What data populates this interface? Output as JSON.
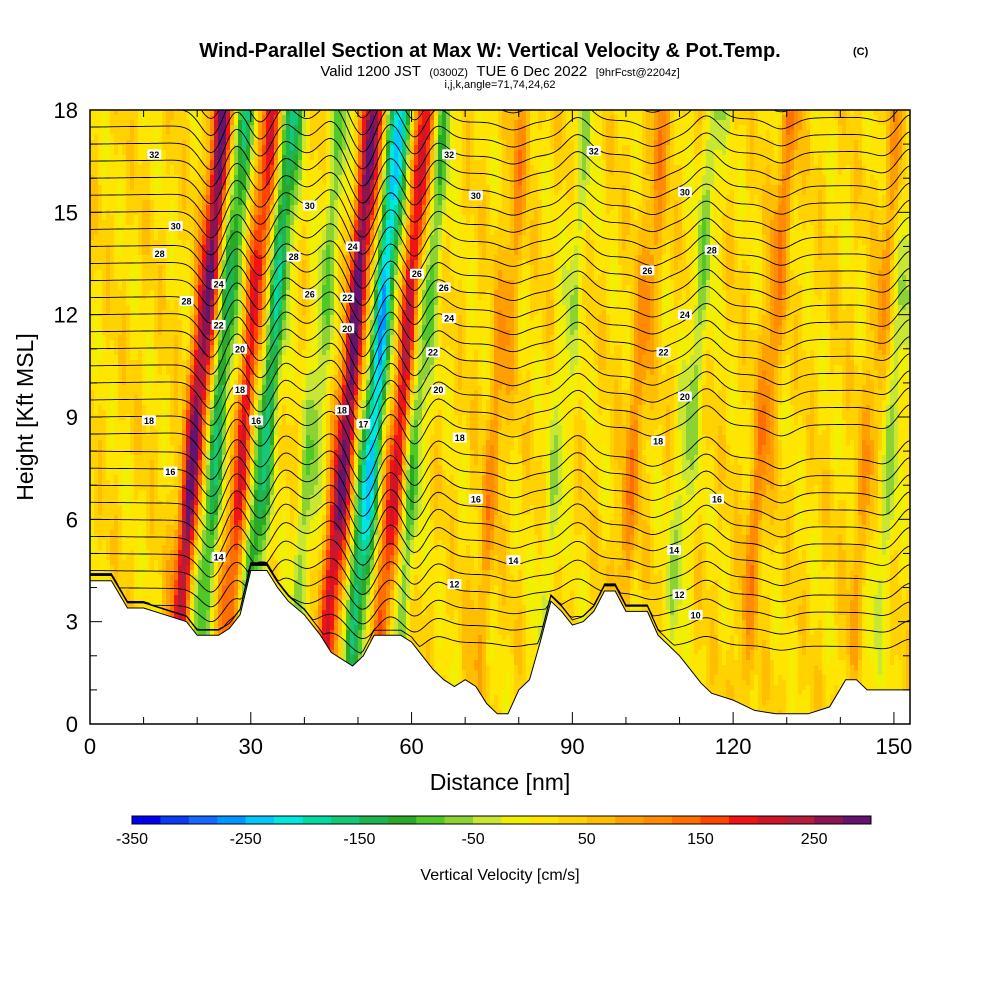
{
  "title": {
    "main": "Wind-Parallel Section at Max W: Vertical Velocity & Pot.Temp.",
    "main_tag": "(C)",
    "valid_prefix": "Valid 1200 JST",
    "valid_utc": "(0300Z)",
    "valid_date": "TUE 6 Dec 2022",
    "forecast": "[9hrFcst@2204z]",
    "indices": "i,j,k,angle=71,74,24,62"
  },
  "chart_data": {
    "type": "heatmap",
    "xlabel": "Distance [nm]",
    "ylabel": "Height [Kft MSL]",
    "xlim": [
      0,
      153
    ],
    "ylim": [
      0,
      18
    ],
    "x_ticks": [
      0,
      30,
      60,
      90,
      120,
      150
    ],
    "y_ticks": [
      0,
      3,
      6,
      9,
      12,
      15,
      18
    ],
    "colorbar": {
      "label": "Vertical Velocity [cm/s]",
      "range": [
        -350,
        300
      ],
      "tick_values": [
        -350,
        -250,
        -150,
        -50,
        50,
        150,
        250
      ],
      "tick_labels": [
        "-350",
        "-250",
        "-150",
        "-50",
        "50",
        "150",
        "250"
      ],
      "colors": [
        "#0000f0",
        "#0a3cf5",
        "#1468ff",
        "#0096ff",
        "#00c8ff",
        "#00e6e0",
        "#00dca0",
        "#14c878",
        "#1eb450",
        "#28aa28",
        "#50c828",
        "#8cd232",
        "#c8e632",
        "#f0f000",
        "#ffe600",
        "#ffd200",
        "#ffbe00",
        "#ffa000",
        "#ff8c00",
        "#ff6e00",
        "#ff4600",
        "#f01414",
        "#d21428",
        "#b41e3c",
        "#8c1450",
        "#64146e"
      ]
    },
    "terrain": [
      [
        0,
        4.2
      ],
      [
        4,
        4.2
      ],
      [
        7,
        3.4
      ],
      [
        10,
        3.4
      ],
      [
        14,
        3.2
      ],
      [
        18,
        3.0
      ],
      [
        20,
        2.6
      ],
      [
        22,
        2.6
      ],
      [
        24,
        2.6
      ],
      [
        26,
        2.8
      ],
      [
        28,
        3.2
      ],
      [
        30,
        4.5
      ],
      [
        33,
        4.5
      ],
      [
        35,
        4.0
      ],
      [
        37,
        3.6
      ],
      [
        40,
        3.2
      ],
      [
        43,
        2.6
      ],
      [
        45,
        2.1
      ],
      [
        47,
        1.9
      ],
      [
        49,
        1.7
      ],
      [
        51,
        2.0
      ],
      [
        53,
        2.6
      ],
      [
        56,
        2.6
      ],
      [
        58,
        2.6
      ],
      [
        60,
        2.4
      ],
      [
        62,
        2.0
      ],
      [
        64,
        1.6
      ],
      [
        66,
        1.3
      ],
      [
        68,
        1.1
      ],
      [
        70,
        1.3
      ],
      [
        72,
        1.1
      ],
      [
        74,
        0.6
      ],
      [
        76,
        0.3
      ],
      [
        78,
        0.3
      ],
      [
        80,
        1.0
      ],
      [
        82,
        1.3
      ],
      [
        84,
        2.4
      ],
      [
        86,
        3.6
      ],
      [
        88,
        3.3
      ],
      [
        90,
        2.9
      ],
      [
        92,
        3.0
      ],
      [
        94,
        3.3
      ],
      [
        96,
        3.9
      ],
      [
        98,
        3.9
      ],
      [
        100,
        3.3
      ],
      [
        102,
        3.3
      ],
      [
        104,
        3.3
      ],
      [
        106,
        2.6
      ],
      [
        108,
        2.3
      ],
      [
        110,
        2.0
      ],
      [
        112,
        1.6
      ],
      [
        114,
        1.2
      ],
      [
        116,
        0.9
      ],
      [
        118,
        0.8
      ],
      [
        120,
        0.7
      ],
      [
        124,
        0.4
      ],
      [
        128,
        0.3
      ],
      [
        134,
        0.3
      ],
      [
        138,
        0.5
      ],
      [
        141,
        1.3
      ],
      [
        143,
        1.3
      ],
      [
        145,
        1.0
      ],
      [
        153,
        1.0
      ]
    ],
    "updrafts": [
      {
        "x": 20,
        "vmax": 260
      },
      {
        "x": 29,
        "vmax": 170
      },
      {
        "x": 48,
        "vmax": 260
      },
      {
        "x": 58,
        "vmax": 200
      },
      {
        "x": 76,
        "vmax": 70
      },
      {
        "x": 102,
        "vmax": 80
      },
      {
        "x": 126,
        "vmax": 90
      },
      {
        "x": 146,
        "vmax": 60
      }
    ],
    "downdrafts": [
      {
        "x": 24,
        "vmin": -160
      },
      {
        "x": 33,
        "vmin": -180
      },
      {
        "x": 42,
        "vmin": -90
      },
      {
        "x": 53,
        "vmin": -260
      },
      {
        "x": 61,
        "vmin": -120
      },
      {
        "x": 88,
        "vmin": -60
      },
      {
        "x": 112,
        "vmin": -80
      },
      {
        "x": 150,
        "vmin": -70
      }
    ],
    "isentropes": {
      "levels": [
        10,
        12,
        14,
        16,
        18,
        20,
        22,
        24,
        26,
        28,
        30,
        32
      ],
      "labels": [
        {
          "text": "32",
          "x": 12,
          "y": 16.7
        },
        {
          "text": "30",
          "x": 16,
          "y": 14.6
        },
        {
          "text": "28",
          "x": 13,
          "y": 13.8
        },
        {
          "text": "28",
          "x": 18,
          "y": 12.4
        },
        {
          "text": "24",
          "x": 24,
          "y": 12.9
        },
        {
          "text": "22",
          "x": 24,
          "y": 11.7
        },
        {
          "text": "20",
          "x": 28,
          "y": 11.0
        },
        {
          "text": "18",
          "x": 28,
          "y": 9.8
        },
        {
          "text": "18",
          "x": 11,
          "y": 8.9
        },
        {
          "text": "16",
          "x": 31,
          "y": 8.9
        },
        {
          "text": "16",
          "x": 15,
          "y": 7.4
        },
        {
          "text": "14",
          "x": 24,
          "y": 4.9
        },
        {
          "text": "30",
          "x": 41,
          "y": 15.2
        },
        {
          "text": "28",
          "x": 38,
          "y": 13.7
        },
        {
          "text": "26",
          "x": 41,
          "y": 12.6
        },
        {
          "text": "24",
          "x": 49,
          "y": 14.0
        },
        {
          "text": "22",
          "x": 48,
          "y": 12.5
        },
        {
          "text": "20",
          "x": 48,
          "y": 11.6
        },
        {
          "text": "18",
          "x": 47,
          "y": 9.2
        },
        {
          "text": "17",
          "x": 51,
          "y": 8.8
        },
        {
          "text": "32",
          "x": 67,
          "y": 16.7
        },
        {
          "text": "30",
          "x": 72,
          "y": 15.5
        },
        {
          "text": "26",
          "x": 61,
          "y": 13.2
        },
        {
          "text": "26",
          "x": 66,
          "y": 12.8
        },
        {
          "text": "24",
          "x": 67,
          "y": 11.9
        },
        {
          "text": "22",
          "x": 64,
          "y": 10.9
        },
        {
          "text": "20",
          "x": 65,
          "y": 9.8
        },
        {
          "text": "18",
          "x": 69,
          "y": 8.4
        },
        {
          "text": "16",
          "x": 72,
          "y": 6.6
        },
        {
          "text": "14",
          "x": 79,
          "y": 4.8
        },
        {
          "text": "12",
          "x": 68,
          "y": 4.1
        },
        {
          "text": "32",
          "x": 94,
          "y": 16.8
        },
        {
          "text": "30",
          "x": 111,
          "y": 15.6
        },
        {
          "text": "28",
          "x": 116,
          "y": 13.9
        },
        {
          "text": "26",
          "x": 104,
          "y": 13.3
        },
        {
          "text": "24",
          "x": 111,
          "y": 12.0
        },
        {
          "text": "22",
          "x": 107,
          "y": 10.9
        },
        {
          "text": "20",
          "x": 111,
          "y": 9.6
        },
        {
          "text": "18",
          "x": 106,
          "y": 8.3
        },
        {
          "text": "16",
          "x": 117,
          "y": 6.6
        },
        {
          "text": "14",
          "x": 109,
          "y": 5.1
        },
        {
          "text": "12",
          "x": 110,
          "y": 3.8
        },
        {
          "text": "10",
          "x": 113,
          "y": 3.2
        }
      ]
    }
  }
}
